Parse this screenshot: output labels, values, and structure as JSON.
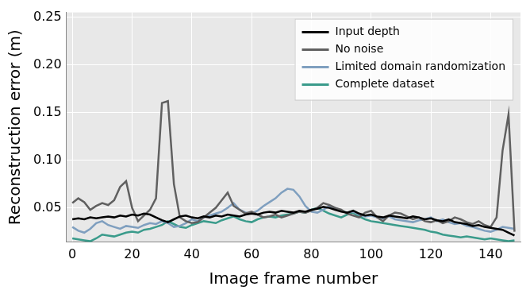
{
  "chart_data": {
    "type": "line",
    "x_label": "Image frame number",
    "y_label": "Reconstruction error (m)",
    "xlim": [
      -2,
      150
    ],
    "ylim": [
      0.014,
      0.255
    ],
    "xticks": [
      0,
      20,
      40,
      60,
      80,
      100,
      120,
      140
    ],
    "yticks": [
      0.05,
      {
        "value": 0.1,
        "label": "0.10"
      },
      0.15,
      {
        "value": 0.2,
        "label": "0.20"
      },
      0.25
    ],
    "grid": true,
    "legend": "upper right",
    "x": [
      0,
      2,
      4,
      6,
      8,
      10,
      12,
      14,
      16,
      18,
      20,
      22,
      24,
      26,
      28,
      30,
      32,
      34,
      36,
      38,
      40,
      42,
      44,
      46,
      48,
      50,
      52,
      54,
      56,
      58,
      60,
      62,
      64,
      66,
      68,
      70,
      72,
      74,
      76,
      78,
      80,
      82,
      84,
      86,
      88,
      90,
      92,
      94,
      96,
      98,
      100,
      102,
      104,
      106,
      108,
      110,
      112,
      114,
      116,
      118,
      120,
      122,
      124,
      126,
      128,
      130,
      132,
      134,
      136,
      138,
      140,
      142,
      144,
      146,
      148
    ],
    "series": [
      {
        "name": "Input depth",
        "color": "#000000",
        "values": [
          0.038,
          0.039,
          0.038,
          0.04,
          0.039,
          0.04,
          0.041,
          0.04,
          0.042,
          0.041,
          0.043,
          0.042,
          0.044,
          0.043,
          0.04,
          0.037,
          0.035,
          0.038,
          0.041,
          0.042,
          0.04,
          0.039,
          0.041,
          0.04,
          0.042,
          0.041,
          0.043,
          0.042,
          0.041,
          0.043,
          0.044,
          0.043,
          0.045,
          0.046,
          0.045,
          0.047,
          0.046,
          0.045,
          0.047,
          0.046,
          0.048,
          0.049,
          0.051,
          0.05,
          0.048,
          0.046,
          0.045,
          0.047,
          0.044,
          0.042,
          0.043,
          0.041,
          0.04,
          0.042,
          0.041,
          0.04,
          0.039,
          0.041,
          0.04,
          0.038,
          0.039,
          0.037,
          0.036,
          0.038,
          0.035,
          0.034,
          0.033,
          0.031,
          0.032,
          0.03,
          0.029,
          0.028,
          0.027,
          0.024,
          0.021
        ]
      },
      {
        "name": "No noise",
        "color": "#606060",
        "values": [
          0.055,
          0.06,
          0.056,
          0.048,
          0.052,
          0.055,
          0.053,
          0.058,
          0.072,
          0.078,
          0.05,
          0.036,
          0.042,
          0.048,
          0.06,
          0.16,
          0.162,
          0.075,
          0.04,
          0.036,
          0.034,
          0.035,
          0.04,
          0.045,
          0.05,
          0.058,
          0.066,
          0.052,
          0.048,
          0.044,
          0.046,
          0.043,
          0.04,
          0.041,
          0.043,
          0.04,
          0.042,
          0.044,
          0.046,
          0.045,
          0.047,
          0.05,
          0.055,
          0.053,
          0.05,
          0.048,
          0.044,
          0.042,
          0.04,
          0.045,
          0.047,
          0.04,
          0.036,
          0.042,
          0.045,
          0.044,
          0.041,
          0.038,
          0.04,
          0.036,
          0.035,
          0.037,
          0.034,
          0.036,
          0.04,
          0.038,
          0.035,
          0.033,
          0.036,
          0.032,
          0.03,
          0.04,
          0.11,
          0.148,
          0.025
        ]
      },
      {
        "name": "Limited domain randomization",
        "color": "#7f9fbf",
        "values": [
          0.03,
          0.026,
          0.024,
          0.028,
          0.034,
          0.036,
          0.032,
          0.03,
          0.028,
          0.031,
          0.03,
          0.029,
          0.032,
          0.034,
          0.033,
          0.036,
          0.034,
          0.03,
          0.031,
          0.034,
          0.038,
          0.036,
          0.04,
          0.042,
          0.044,
          0.046,
          0.05,
          0.055,
          0.048,
          0.045,
          0.044,
          0.047,
          0.052,
          0.056,
          0.06,
          0.066,
          0.07,
          0.069,
          0.062,
          0.052,
          0.046,
          0.045,
          0.048,
          0.052,
          0.05,
          0.047,
          0.045,
          0.046,
          0.043,
          0.041,
          0.042,
          0.04,
          0.039,
          0.041,
          0.038,
          0.037,
          0.036,
          0.035,
          0.037,
          0.038,
          0.04,
          0.036,
          0.038,
          0.035,
          0.033,
          0.034,
          0.031,
          0.03,
          0.028,
          0.026,
          0.025,
          0.027,
          0.03,
          0.029,
          0.028
        ]
      },
      {
        "name": "Complete dataset",
        "color": "#3a9b8b",
        "values": [
          0.018,
          0.017,
          0.016,
          0.015,
          0.018,
          0.022,
          0.021,
          0.02,
          0.022,
          0.024,
          0.025,
          0.024,
          0.027,
          0.028,
          0.03,
          0.032,
          0.036,
          0.033,
          0.03,
          0.029,
          0.032,
          0.034,
          0.036,
          0.035,
          0.034,
          0.037,
          0.039,
          0.041,
          0.038,
          0.036,
          0.035,
          0.038,
          0.04,
          0.041,
          0.04,
          0.042,
          0.043,
          0.044,
          0.046,
          0.045,
          0.048,
          0.05,
          0.047,
          0.044,
          0.042,
          0.04,
          0.043,
          0.045,
          0.041,
          0.038,
          0.036,
          0.035,
          0.034,
          0.033,
          0.032,
          0.031,
          0.03,
          0.029,
          0.028,
          0.027,
          0.025,
          0.024,
          0.022,
          0.021,
          0.02,
          0.019,
          0.02,
          0.019,
          0.018,
          0.017,
          0.018,
          0.017,
          0.016,
          0.015,
          0.016
        ]
      }
    ]
  }
}
